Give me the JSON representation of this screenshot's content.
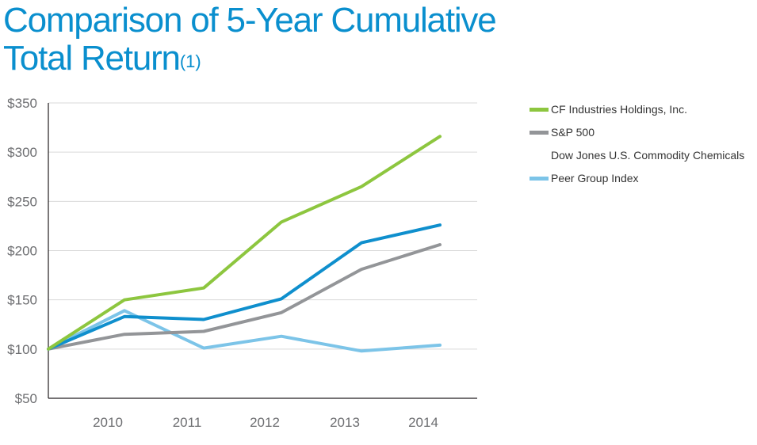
{
  "title": {
    "line1": "Comparison of 5-Year Cumulative",
    "line2": "Total Return",
    "footnote": "(1)"
  },
  "chart_data": {
    "type": "line",
    "x": [
      "2009",
      "2010",
      "2011",
      "2012",
      "2013",
      "2014"
    ],
    "x_tick_labels": [
      "2010",
      "2011",
      "2012",
      "2013",
      "2014"
    ],
    "ylim": [
      50,
      350
    ],
    "y_ticks": [
      50,
      100,
      150,
      200,
      250,
      300,
      350
    ],
    "y_tick_labels": [
      "$50",
      "$100",
      "$150",
      "$200",
      "$250",
      "$300",
      "$350"
    ],
    "grid": true,
    "legend_position": "right",
    "series": [
      {
        "name": "CF Industries Holdings, Inc.",
        "color": "#8dc63f",
        "values": [
          100,
          150,
          162,
          229,
          265,
          316
        ]
      },
      {
        "name": "S&P 500",
        "color": "#939598",
        "values": [
          100,
          115,
          118,
          137,
          181,
          206
        ]
      },
      {
        "name": "Dow Jones U.S. Commodity Chemicals",
        "color": "#0f8fcd",
        "values": [
          100,
          133,
          130,
          151,
          208,
          226
        ]
      },
      {
        "name": "Peer Group Index",
        "color": "#7cc4e8",
        "values": [
          100,
          139,
          101,
          113,
          98,
          104
        ]
      }
    ]
  }
}
